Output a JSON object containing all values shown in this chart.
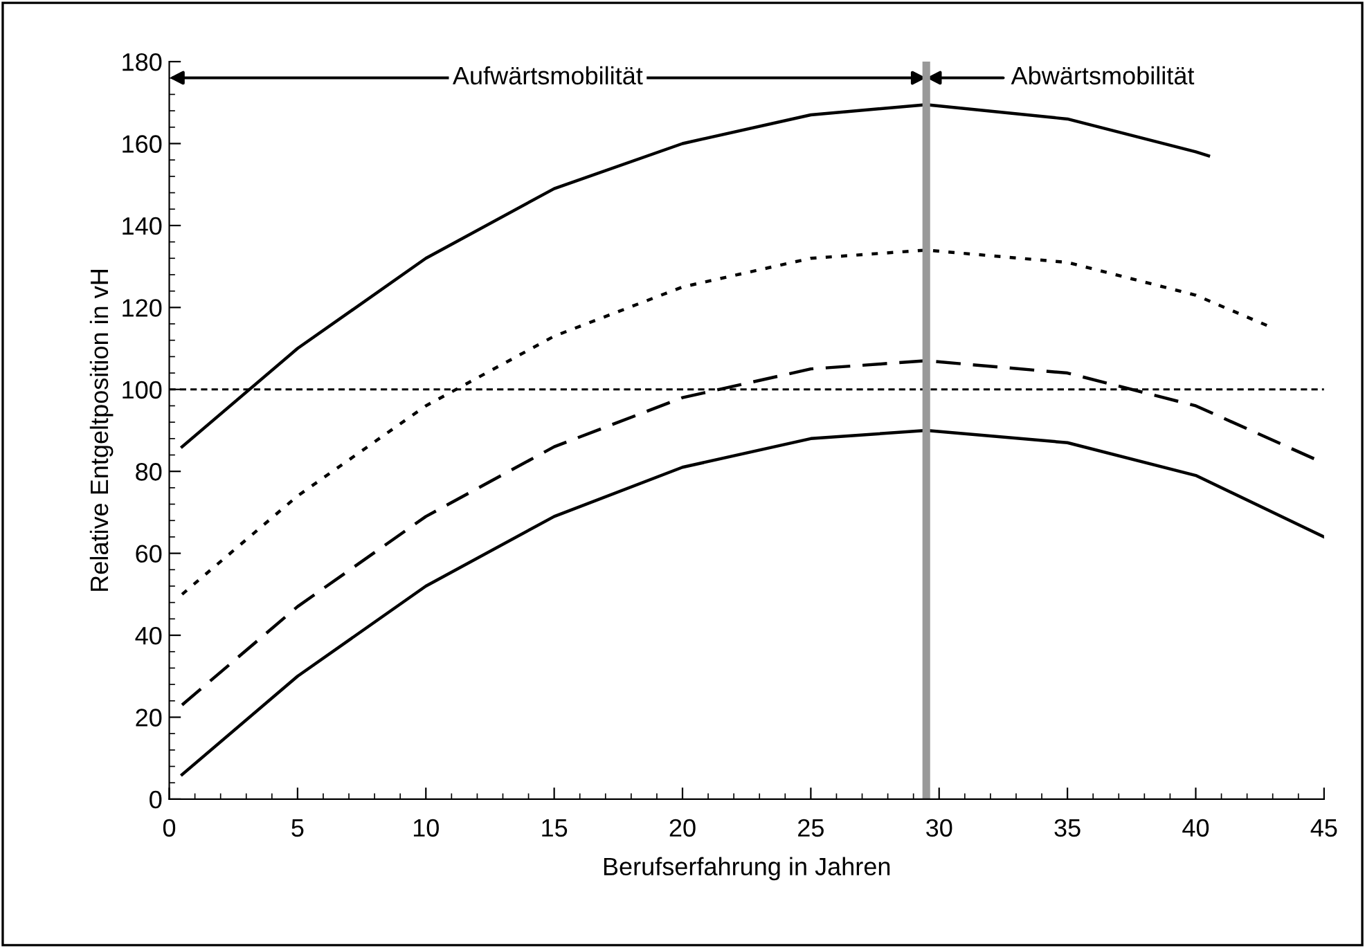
{
  "chart_data": {
    "type": "line",
    "xlabel": "Berufserfahrung in Jahren",
    "ylabel": "Relative Entgeltposition in vH",
    "xlim": [
      0,
      45
    ],
    "xticks": [
      0,
      5,
      10,
      15,
      20,
      25,
      30,
      35,
      40,
      45
    ],
    "ylim": [
      0,
      180
    ],
    "yticks": [
      0,
      20,
      40,
      60,
      80,
      100,
      120,
      140,
      160,
      180
    ],
    "grid": false,
    "legend": false,
    "marker": "none",
    "series": [
      {
        "color": "#000000",
        "line_style": "solid",
        "x": [
          0.5,
          5,
          10,
          15,
          20,
          25,
          29.5,
          35,
          40,
          40.5
        ],
        "values": [
          86,
          110,
          132,
          149,
          160,
          167,
          169.5,
          166,
          158,
          157
        ]
      },
      {
        "color": "#000000",
        "line_style": "dotted",
        "x": [
          0.5,
          5,
          10,
          15,
          20,
          25,
          29.5,
          35,
          40,
          43
        ],
        "values": [
          50,
          74,
          96,
          113,
          125,
          132,
          134,
          131,
          123,
          115
        ]
      },
      {
        "color": "#000000",
        "line_style": "dashed",
        "x": [
          0.5,
          5,
          10,
          15,
          20,
          25,
          29.5,
          35,
          40,
          45
        ],
        "values": [
          23,
          47,
          69,
          86,
          98,
          105,
          107,
          104,
          96,
          82
        ]
      },
      {
        "color": "#000000",
        "line_style": "solid",
        "x": [
          0.5,
          5,
          10,
          15,
          20,
          25,
          29.5,
          35,
          40,
          45
        ],
        "values": [
          6,
          30,
          52,
          69,
          81,
          88,
          90,
          87,
          79,
          64
        ]
      }
    ],
    "ref_lines": [
      {
        "axis": "y",
        "value": 100,
        "color": "#000000",
        "line_style": "dashed"
      },
      {
        "axis": "x",
        "value": 29.5,
        "color": "#999999",
        "line_style": "solid"
      }
    ],
    "annotations": [
      "Aufwärtsmobilität",
      "Abwärtsmobilität"
    ]
  }
}
